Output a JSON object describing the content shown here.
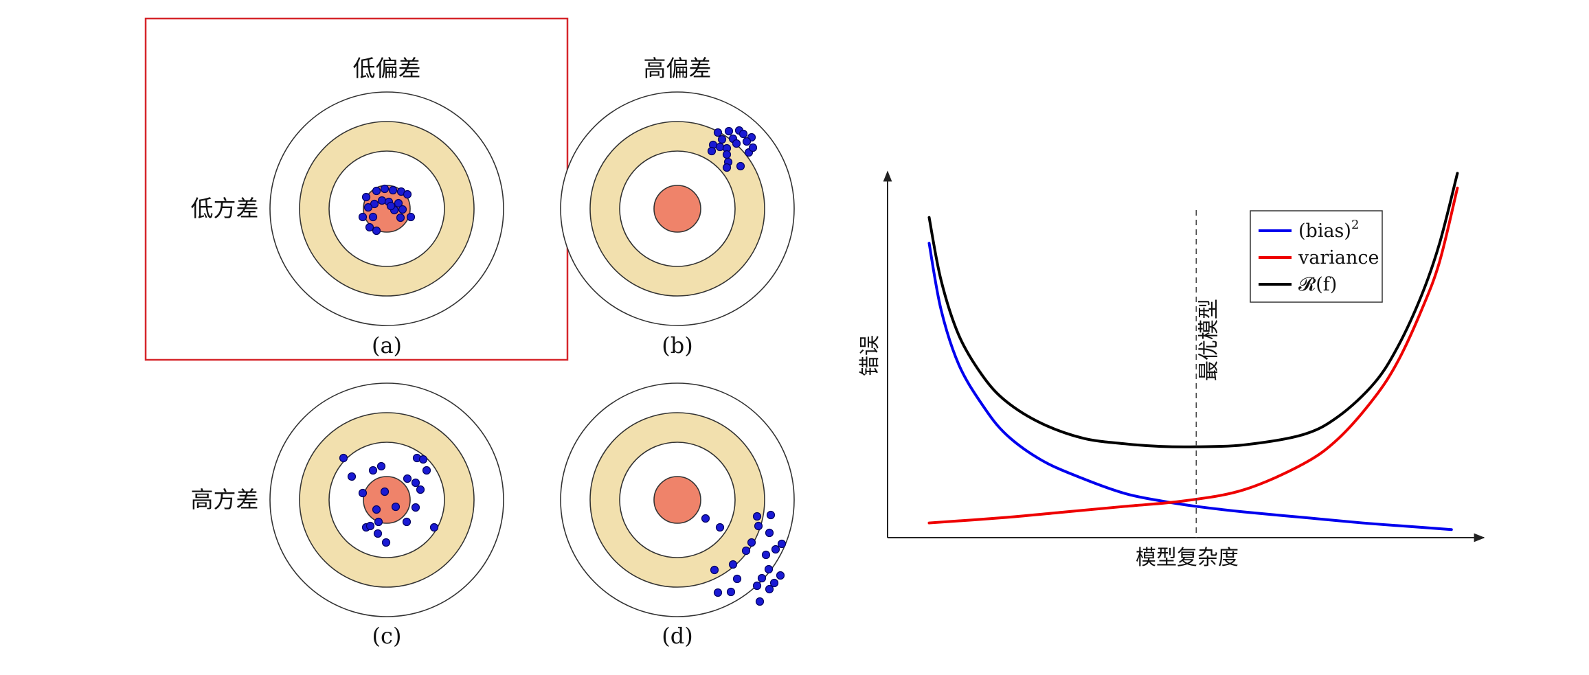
{
  "targets": {
    "column_labels": [
      "低偏差",
      "高偏差"
    ],
    "row_labels": [
      "低方差",
      "高方差"
    ],
    "panels": [
      {
        "id": "a",
        "caption": "(a)",
        "highlighted": true
      },
      {
        "id": "b",
        "caption": "(b)",
        "highlighted": false
      },
      {
        "id": "c",
        "caption": "(c)",
        "highlighted": false
      },
      {
        "id": "d",
        "caption": "(d)",
        "highlighted": false
      }
    ],
    "colors": {
      "outer_ring": "#ffffff",
      "middle_ring": "#f2e0ae",
      "inner_ring": "#ffffff",
      "bullseye": "#ef836a",
      "dot": "#1a1ad4",
      "highlight_frame": "#d6262b"
    }
  },
  "chart_data": {
    "type": "line",
    "title": "",
    "xlabel": "模型复杂度",
    "ylabel": "错误",
    "xlim": [
      0,
      1
    ],
    "ylim": [
      0,
      1
    ],
    "optimal_marker": {
      "x": 0.52,
      "label": "最优模型"
    },
    "legend_position": "top-right",
    "series": [
      {
        "name": "(bias)",
        "superscript": "2",
        "color": "#0000ee",
        "x": [
          0.07,
          0.09,
          0.12,
          0.16,
          0.2,
          0.26,
          0.33,
          0.4,
          0.46,
          0.52,
          0.6,
          0.7,
          0.8,
          0.9,
          0.95
        ],
        "y": [
          0.8,
          0.62,
          0.47,
          0.36,
          0.28,
          0.21,
          0.16,
          0.12,
          0.1,
          0.085,
          0.07,
          0.055,
          0.04,
          0.028,
          0.022
        ]
      },
      {
        "name": "variance",
        "color": "#ee0000",
        "x": [
          0.07,
          0.2,
          0.3,
          0.4,
          0.5,
          0.6,
          0.7,
          0.76,
          0.82,
          0.86,
          0.9,
          0.93,
          0.96
        ],
        "y": [
          0.04,
          0.055,
          0.07,
          0.085,
          0.1,
          0.13,
          0.2,
          0.27,
          0.38,
          0.48,
          0.62,
          0.75,
          0.95
        ]
      },
      {
        "name": "𝓡(f)",
        "color": "#000000",
        "x": [
          0.07,
          0.09,
          0.12,
          0.16,
          0.2,
          0.26,
          0.33,
          0.4,
          0.46,
          0.52,
          0.6,
          0.7,
          0.76,
          0.82,
          0.86,
          0.9,
          0.93,
          0.96
        ],
        "y": [
          0.87,
          0.7,
          0.55,
          0.44,
          0.37,
          0.31,
          0.27,
          0.255,
          0.248,
          0.247,
          0.252,
          0.28,
          0.33,
          0.42,
          0.52,
          0.66,
          0.8,
          0.99
        ]
      }
    ]
  }
}
